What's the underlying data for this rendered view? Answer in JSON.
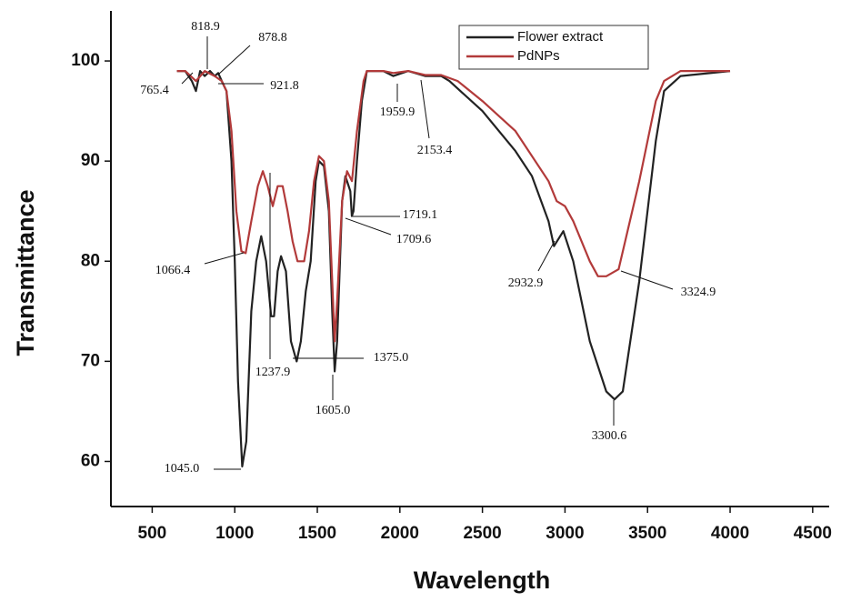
{
  "chart_data": {
    "type": "line",
    "x_label": "Wavelength",
    "y_label": "Transmittance",
    "xlim": [
      250,
      4600
    ],
    "ylim": [
      55.5,
      105
    ],
    "xticks": [
      500,
      1000,
      1500,
      2000,
      2500,
      3000,
      3500,
      4000,
      4500
    ],
    "yticks": [
      60,
      70,
      80,
      90,
      100
    ],
    "legend": "upper right",
    "series": [
      {
        "name": "Flower extract",
        "color": "#222222",
        "x": [
          650,
          700,
          740,
          765,
          790,
          818,
          850,
          878,
          900,
          921,
          950,
          980,
          1000,
          1020,
          1045,
          1070,
          1100,
          1130,
          1160,
          1190,
          1220,
          1238,
          1260,
          1280,
          1310,
          1340,
          1375,
          1400,
          1430,
          1460,
          1490,
          1510,
          1540,
          1570,
          1590,
          1605,
          1620,
          1650,
          1670,
          1700,
          1709,
          1719,
          1740,
          1770,
          1800,
          1900,
          1960,
          2050,
          2153,
          2250,
          2300,
          2500,
          2700,
          2800,
          2900,
          2933,
          2990,
          3050,
          3150,
          3250,
          3300,
          3350,
          3450,
          3550,
          3600,
          3700,
          4000
        ],
        "values": [
          99,
          99,
          98,
          97,
          99,
          98.5,
          99,
          98.5,
          98.8,
          98,
          97,
          90,
          80,
          68,
          59.5,
          62,
          75,
          80,
          82.5,
          80,
          74.5,
          74.5,
          79,
          80.5,
          79,
          72,
          70,
          72,
          77,
          80,
          88,
          90,
          89.5,
          85,
          75,
          69,
          72,
          86,
          88.5,
          87,
          84.5,
          85,
          90,
          96,
          99,
          99,
          98.5,
          99,
          98.5,
          98.5,
          98,
          95,
          91,
          88.5,
          84,
          81.5,
          83,
          80,
          72,
          67,
          66.2,
          67,
          78,
          92,
          97,
          98.5,
          99
        ]
      },
      {
        "name": "PdNPs",
        "color": "#b23a3a",
        "x": [
          650,
          700,
          765,
          818,
          878,
          921,
          950,
          980,
          1010,
          1040,
          1066,
          1100,
          1140,
          1170,
          1200,
          1230,
          1260,
          1290,
          1320,
          1350,
          1380,
          1420,
          1450,
          1480,
          1510,
          1540,
          1570,
          1590,
          1605,
          1620,
          1650,
          1680,
          1710,
          1740,
          1780,
          1800,
          1900,
          1960,
          2050,
          2153,
          2250,
          2350,
          2500,
          2700,
          2900,
          2950,
          3000,
          3050,
          3150,
          3200,
          3250,
          3325,
          3450,
          3550,
          3600,
          3700,
          4000
        ],
        "values": [
          99,
          99,
          98,
          99,
          98.5,
          98,
          97,
          93,
          85,
          81,
          80.8,
          84,
          87.5,
          89,
          87.5,
          85.5,
          87.5,
          87.5,
          85,
          82,
          80,
          80,
          83,
          88,
          90.5,
          90,
          86,
          78,
          72,
          76,
          86,
          89,
          88,
          93,
          98,
          99,
          99,
          98.8,
          99,
          98.6,
          98.6,
          98,
          96,
          93,
          88,
          86,
          85.5,
          84,
          80,
          78.5,
          78.5,
          79.2,
          88,
          96,
          98,
          99,
          99
        ]
      }
    ],
    "annotations": [
      "765.4",
      "818.9",
      "878.8",
      "921.8",
      "1066.4",
      "1045.0",
      "1237.9",
      "1375.0",
      "1605.0",
      "1709.6",
      "1719.1",
      "1959.9",
      "2153.4",
      "2932.9",
      "3324.9",
      "3300.6"
    ]
  }
}
